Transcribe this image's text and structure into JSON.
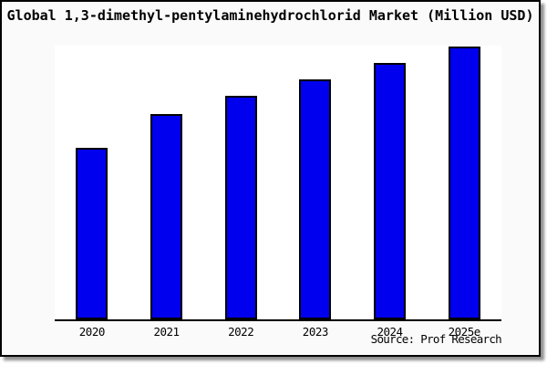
{
  "frame": {
    "title": "Global 1,3-dimethyl-pentylaminehydrochlorid Market (Million USD)",
    "source": "Source: Prof Research"
  },
  "colors": {
    "bar_fill": "#0000ee",
    "bar_border": "#000000",
    "background": "#fafafa",
    "plot_background": "#ffffff",
    "axis": "#000000"
  },
  "chart_data": {
    "type": "bar",
    "title": "Global 1,3-dimethyl-pentylaminehydrochlorid Market (Million USD)",
    "categories": [
      "2020",
      "2021",
      "2022",
      "2023",
      "2024",
      "2025e"
    ],
    "values": [
      188,
      225,
      245,
      263,
      281,
      299
    ],
    "values_note": "No y-axis, gridlines or data labels shown; values are relative bar heights in screen px (steady growth 2020→2025e)",
    "values_pct_of_2025e": [
      62.9,
      75.3,
      81.9,
      88.0,
      94.0,
      100.0
    ],
    "xlabel": "",
    "ylabel": "",
    "ylim": [
      0,
      300
    ],
    "grid": false,
    "legend": "none",
    "source": "Source: Prof Research"
  }
}
